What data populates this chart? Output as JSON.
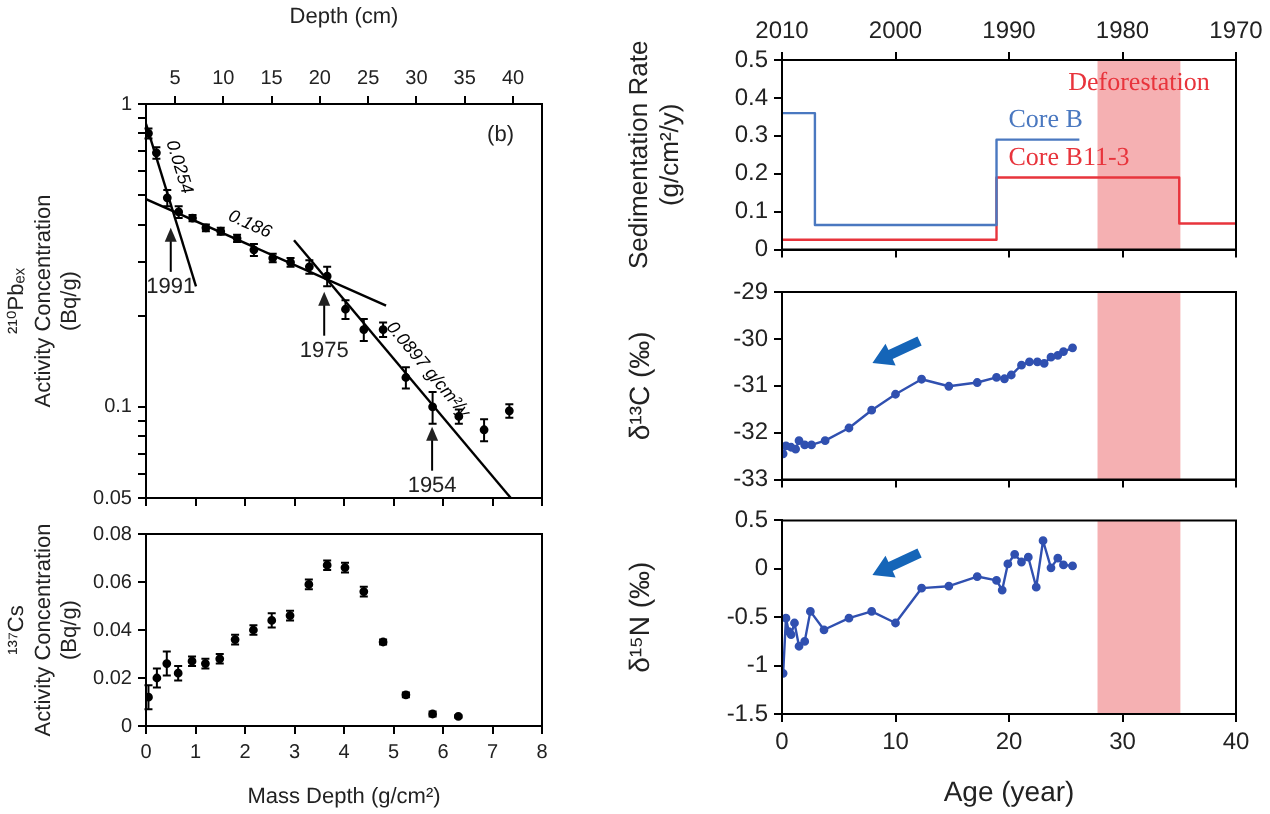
{
  "chart_data": [
    {
      "type": "scatter",
      "x2label": "Depth (cm)",
      "ylabel": "²¹⁰Pbₑₓ\nActivity Concentration\n(Bq/g)",
      "log": "y",
      "xlim": [
        0,
        8
      ],
      "xticks": [
        0,
        1,
        2,
        3,
        4,
        5,
        6,
        7,
        8
      ],
      "x2lim": [
        2,
        43
      ],
      "x2ticks": [
        5,
        10,
        15,
        20,
        25,
        30,
        35,
        40
      ],
      "ylim": [
        0.05,
        1
      ],
      "yticks": [
        0.05,
        {
          "value": 0.06,
          "label": null
        },
        {
          "value": 0.07,
          "label": null
        },
        {
          "value": 0.08,
          "label": null
        },
        {
          "value": 0.09,
          "label": null
        },
        0.1,
        {
          "value": 0.2,
          "label": null
        },
        {
          "value": 0.3,
          "label": null
        },
        {
          "value": 0.4,
          "label": null
        },
        {
          "value": 0.5,
          "label": null
        },
        {
          "value": 0.6,
          "label": null
        },
        {
          "value": 0.7,
          "label": null
        },
        {
          "value": 0.8,
          "label": null
        },
        {
          "value": 0.9,
          "label": null
        },
        1
      ],
      "tick_labels": "y",
      "marker": "circle",
      "annotations": [
        "(b)",
        {
          "text": "1991",
          "x": 0.5,
          "y": 0.39
        },
        {
          "text": "1975",
          "x": 3.6,
          "y": 0.24
        },
        {
          "text": "1954",
          "x": 5.78,
          "y": 0.086
        }
      ],
      "series": [
        {
          "color": "#000000",
          "x": [
            0.05,
            0.21,
            0.43,
            0.66,
            0.94,
            1.21,
            1.51,
            1.84,
            2.18,
            2.56,
            2.92,
            3.3,
            3.66,
            4.03,
            4.4,
            4.79,
            5.25,
            5.79,
            6.32,
            6.83,
            7.34
          ],
          "values": [
            0.8,
            0.69,
            0.49,
            0.44,
            0.42,
            0.39,
            0.38,
            0.36,
            0.33,
            0.31,
            0.3,
            0.29,
            0.27,
            0.21,
            0.18,
            0.18,
            0.125,
            0.1,
            0.093,
            0.084,
            0.097
          ],
          "errors": [
            0.03,
            0.03,
            0.03,
            0.02,
            0.01,
            0.01,
            0.01,
            0.01,
            0.015,
            0.01,
            0.01,
            0.015,
            0.02,
            0.015,
            0.015,
            0.01,
            0.01,
            0.012,
            0.005,
            0.007,
            0.005
          ]
        },
        {
          "type": "line",
          "name": "0.0254",
          "color": "#000000",
          "marker": "none",
          "x": [
            0,
            1.01
          ],
          "values": [
            0.86,
            0.25
          ]
        },
        {
          "type": "line",
          "name": "0.186",
          "color": "#000000",
          "marker": "none",
          "x": [
            0,
            4.85
          ],
          "values": [
            0.485,
            0.216
          ]
        },
        {
          "type": "line",
          "name": "0.0897 g/cm²/y",
          "color": "#000000",
          "marker": "none",
          "x": [
            2.99,
            7.37
          ],
          "values": [
            0.355,
            0.05
          ]
        }
      ]
    },
    {
      "type": "scatter",
      "xlabel": "Mass Depth (g/cm²)",
      "ylabel": "¹³⁷Cs\nActivity Concentration\n(Bq/g)",
      "xlim": [
        0,
        8
      ],
      "xticks": [
        0,
        1,
        2,
        3,
        4,
        5,
        6,
        7,
        8
      ],
      "ylim": [
        0,
        0.08
      ],
      "yticks": [
        0,
        0.02,
        0.04,
        0.06,
        0.08
      ],
      "marker": "circle",
      "color": "#000000",
      "x": [
        0.05,
        0.22,
        0.42,
        0.65,
        0.93,
        1.2,
        1.49,
        1.8,
        2.17,
        2.54,
        2.91,
        3.29,
        3.66,
        4.02,
        4.4,
        4.79,
        5.25,
        5.79,
        6.31
      ],
      "values": [
        0.012,
        0.02,
        0.026,
        0.022,
        0.027,
        0.026,
        0.028,
        0.036,
        0.04,
        0.044,
        0.046,
        0.059,
        0.067,
        0.066,
        0.056,
        0.035,
        0.013,
        0.005,
        0.004
      ],
      "errors": [
        0.005,
        0.004,
        0.005,
        0.003,
        0.002,
        0.002,
        0.002,
        0.002,
        0.002,
        0.003,
        0.002,
        0.002,
        0.002,
        0.002,
        0.002,
        0.001,
        0.001,
        0.001,
        0.0005
      ]
    },
    {
      "type": "step",
      "ylabel": "Sedimentation Rate\n(g/cm²/y)",
      "xlim": [
        0,
        40
      ],
      "xticks": [
        0,
        10,
        20,
        30,
        40
      ],
      "x2lim": [
        2010,
        1970
      ],
      "x2ticks": [
        2010,
        2000,
        1990,
        1980,
        1970
      ],
      "ylim": [
        0,
        0.5
      ],
      "yticks": [
        0,
        0.1,
        0.2,
        0.3,
        0.4,
        0.5
      ],
      "tick_labels": "y",
      "bands": [
        {
          "axis": "x",
          "from": 27.8,
          "to": 35.1,
          "label": "Deforestation",
          "color": "#f5b0b2"
        }
      ],
      "series": [
        {
          "name": "Core B",
          "color": "#4a78c0",
          "x": [
            0,
            2.9,
            18.9,
            26.2
          ],
          "values": [
            0.36,
            0.065,
            0.29,
            0.29
          ]
        },
        {
          "name": "Core B11-3",
          "color": "#e8343c",
          "x": [
            0,
            18.9,
            35.0,
            40
          ],
          "values": [
            0.026,
            0.19,
            0.069,
            0.069
          ]
        }
      ]
    },
    {
      "type": "line",
      "ylabel": "δ¹³C (‰)",
      "xlim": [
        0,
        40
      ],
      "xticks": [
        0,
        10,
        20,
        30,
        40
      ],
      "ylim": [
        -33,
        -29
      ],
      "yticks": [
        -33,
        -32,
        -31,
        -30,
        -29
      ],
      "tick_labels": "y",
      "marker": "circle",
      "color": "#3050b0",
      "bands": [
        {
          "axis": "x",
          "from": 27.8,
          "to": 35.1,
          "color": "#f5b0b2"
        }
      ],
      "x": [
        0.1,
        0.35,
        0.8,
        1.2,
        1.5,
        2.0,
        2.6,
        3.8,
        5.9,
        7.9,
        10.0,
        12.3,
        14.7,
        17.2,
        18.9,
        19.6,
        20.2,
        21.1,
        21.8,
        22.5,
        23.1,
        23.7,
        24.3,
        24.8,
        25.6
      ],
      "values": [
        -32.45,
        -32.28,
        -32.31,
        -32.35,
        -32.17,
        -32.26,
        -32.26,
        -32.17,
        -31.9,
        -31.52,
        -31.18,
        -30.86,
        -31.01,
        -30.93,
        -30.82,
        -30.85,
        -30.77,
        -30.56,
        -30.49,
        -30.49,
        -30.52,
        -30.39,
        -30.35,
        -30.27,
        -30.19
      ]
    },
    {
      "type": "line",
      "ylabel": "δ¹⁵N (‰)",
      "xlabel": "Age (year)",
      "xlim": [
        0,
        40
      ],
      "xticks": [
        0,
        10,
        20,
        30,
        40
      ],
      "ylim": [
        -1.5,
        0.5
      ],
      "yticks": [
        -1.5,
        -1,
        -0.5,
        0,
        0.5
      ],
      "marker": "circle",
      "color": "#3050b0",
      "bands": [
        {
          "axis": "x",
          "from": 27.8,
          "to": 35.1,
          "color": "#f5b0b2"
        }
      ],
      "x": [
        0.1,
        0.35,
        0.6,
        0.8,
        1.1,
        1.5,
        2.0,
        2.5,
        3.7,
        5.9,
        7.9,
        10.0,
        12.3,
        14.7,
        17.2,
        18.9,
        19.4,
        19.9,
        20.5,
        21.1,
        21.7,
        22.4,
        23.0,
        23.7,
        24.3,
        24.8,
        25.6
      ],
      "values": [
        -1.08,
        -0.51,
        -0.65,
        -0.68,
        -0.56,
        -0.8,
        -0.75,
        -0.44,
        -0.63,
        -0.51,
        -0.44,
        -0.56,
        -0.2,
        -0.18,
        -0.08,
        -0.12,
        -0.22,
        0.05,
        0.15,
        0.07,
        0.12,
        -0.19,
        0.29,
        0.01,
        0.11,
        0.04,
        0.03
      ]
    }
  ]
}
